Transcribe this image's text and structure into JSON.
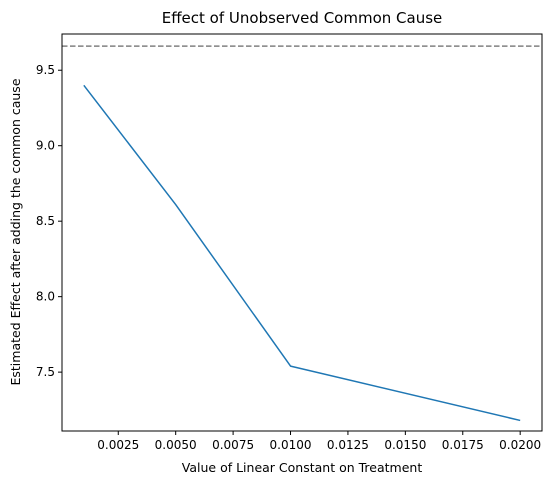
{
  "chart_data": {
    "type": "line",
    "title": "Effect of Unobserved Common Cause",
    "xlabel": "Value of Linear Constant on Treatment",
    "ylabel": "Estimated Effect after adding the common cause",
    "xlim": [
      5e-05,
      0.02095
    ],
    "ylim": [
      7.11,
      9.74
    ],
    "x_ticks": [
      0.0025,
      0.005,
      0.0075,
      0.01,
      0.0125,
      0.015,
      0.0175,
      0.02
    ],
    "x_tick_labels": [
      "0.0025",
      "0.0050",
      "0.0075",
      "0.0100",
      "0.0125",
      "0.0150",
      "0.0175",
      "0.0200"
    ],
    "y_ticks": [
      7.5,
      8.0,
      8.5,
      9.0,
      9.5
    ],
    "y_tick_labels": [
      "7.5",
      "8.0",
      "8.5",
      "9.0",
      "9.5"
    ],
    "grid": false,
    "series": [
      {
        "color": "#1f77b4",
        "x": [
          0.001,
          0.005,
          0.01,
          0.02
        ],
        "values": [
          9.4,
          8.61,
          7.54,
          7.18
        ]
      }
    ],
    "reference_line": {
      "orientation": "horizontal",
      "y": 9.66,
      "style": "dashed",
      "color": "#808080"
    }
  }
}
